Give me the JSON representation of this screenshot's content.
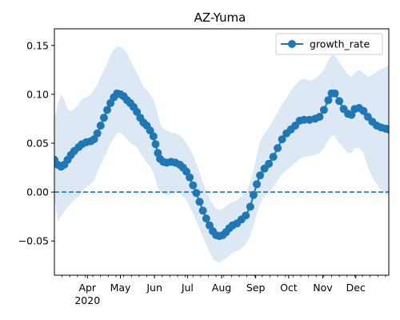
{
  "chart_data": {
    "type": "line",
    "title": "AZ-Yuma",
    "xlabel": "",
    "ylabel": "",
    "x_axis": {
      "type": "date",
      "range": [
        "2020-03-02",
        "2020-12-31"
      ],
      "major_ticks": [
        {
          "date": "2020-04-01",
          "label": "Apr",
          "sublabel": "2020"
        },
        {
          "date": "2020-05-01",
          "label": "May"
        },
        {
          "date": "2020-06-01",
          "label": "Jun"
        },
        {
          "date": "2020-07-01",
          "label": "Jul"
        },
        {
          "date": "2020-08-01",
          "label": "Aug"
        },
        {
          "date": "2020-09-01",
          "label": "Sep"
        },
        {
          "date": "2020-10-01",
          "label": "Oct"
        },
        {
          "date": "2020-11-01",
          "label": "Nov"
        },
        {
          "date": "2020-12-01",
          "label": "Dec"
        }
      ],
      "minor_ticks": "weekly"
    },
    "y_axis": {
      "range": [
        -0.085,
        0.167
      ],
      "ticks": [
        -0.05,
        0.0,
        0.05,
        0.1,
        0.15
      ],
      "tick_labels": [
        "−0.05",
        "0.00",
        "0.05",
        "0.10",
        "0.15"
      ]
    },
    "reference_line": {
      "y": 0.0,
      "style": "dashed",
      "color": "#1f77b4"
    },
    "legend": {
      "placement": "top-right"
    },
    "colors": {
      "series": "#1f77b4",
      "band": "#dce9f5"
    },
    "series": [
      {
        "name": "growth_rate",
        "marker": "circle",
        "points": [
          {
            "x": "2020-03-02",
            "y": 0.033,
            "lo": -0.005,
            "hi": 0.075
          },
          {
            "x": "2020-03-05",
            "y": 0.028,
            "lo": -0.03,
            "hi": 0.09
          },
          {
            "x": "2020-03-08",
            "y": 0.026,
            "lo": -0.025,
            "hi": 0.1
          },
          {
            "x": "2020-03-11",
            "y": 0.028,
            "lo": -0.02,
            "hi": 0.095
          },
          {
            "x": "2020-03-14",
            "y": 0.033,
            "lo": -0.015,
            "hi": 0.085
          },
          {
            "x": "2020-03-17",
            "y": 0.038,
            "lo": -0.012,
            "hi": 0.083
          },
          {
            "x": "2020-03-20",
            "y": 0.042,
            "lo": -0.008,
            "hi": 0.085
          },
          {
            "x": "2020-03-24",
            "y": 0.046,
            "lo": -0.005,
            "hi": 0.09
          },
          {
            "x": "2020-03-27",
            "y": 0.049,
            "lo": 0.0,
            "hi": 0.095
          },
          {
            "x": "2020-03-31",
            "y": 0.051,
            "lo": 0.005,
            "hi": 0.097
          },
          {
            "x": "2020-04-04",
            "y": 0.052,
            "lo": 0.008,
            "hi": 0.1
          },
          {
            "x": "2020-04-07",
            "y": 0.054,
            "lo": 0.012,
            "hi": 0.105
          },
          {
            "x": "2020-04-10",
            "y": 0.06,
            "lo": 0.02,
            "hi": 0.11
          },
          {
            "x": "2020-04-13",
            "y": 0.068,
            "lo": 0.028,
            "hi": 0.118
          },
          {
            "x": "2020-04-16",
            "y": 0.076,
            "lo": 0.035,
            "hi": 0.125
          },
          {
            "x": "2020-04-19",
            "y": 0.084,
            "lo": 0.042,
            "hi": 0.132
          },
          {
            "x": "2020-04-22",
            "y": 0.091,
            "lo": 0.05,
            "hi": 0.14
          },
          {
            "x": "2020-04-25",
            "y": 0.097,
            "lo": 0.055,
            "hi": 0.146
          },
          {
            "x": "2020-04-28",
            "y": 0.101,
            "lo": 0.06,
            "hi": 0.149
          },
          {
            "x": "2020-05-01",
            "y": 0.1,
            "lo": 0.061,
            "hi": 0.149
          },
          {
            "x": "2020-05-04",
            "y": 0.098,
            "lo": 0.058,
            "hi": 0.146
          },
          {
            "x": "2020-05-07",
            "y": 0.094,
            "lo": 0.054,
            "hi": 0.142
          },
          {
            "x": "2020-05-10",
            "y": 0.091,
            "lo": 0.05,
            "hi": 0.135
          },
          {
            "x": "2020-05-13",
            "y": 0.087,
            "lo": 0.048,
            "hi": 0.128
          },
          {
            "x": "2020-05-16",
            "y": 0.082,
            "lo": 0.046,
            "hi": 0.122
          },
          {
            "x": "2020-05-19",
            "y": 0.076,
            "lo": 0.04,
            "hi": 0.115
          },
          {
            "x": "2020-05-22",
            "y": 0.071,
            "lo": 0.035,
            "hi": 0.108
          },
          {
            "x": "2020-05-25",
            "y": 0.068,
            "lo": 0.03,
            "hi": 0.104
          },
          {
            "x": "2020-05-28",
            "y": 0.063,
            "lo": 0.026,
            "hi": 0.1
          },
          {
            "x": "2020-05-31",
            "y": 0.057,
            "lo": 0.02,
            "hi": 0.095
          },
          {
            "x": "2020-06-02",
            "y": 0.049,
            "lo": 0.012,
            "hi": 0.088
          },
          {
            "x": "2020-06-04",
            "y": 0.04,
            "lo": 0.004,
            "hi": 0.08
          },
          {
            "x": "2020-06-06",
            "y": 0.034,
            "lo": 0.0,
            "hi": 0.07
          },
          {
            "x": "2020-06-09",
            "y": 0.031,
            "lo": -0.002,
            "hi": 0.065
          },
          {
            "x": "2020-06-12",
            "y": 0.03,
            "lo": -0.003,
            "hi": 0.063
          },
          {
            "x": "2020-06-16",
            "y": 0.031,
            "lo": -0.002,
            "hi": 0.061
          },
          {
            "x": "2020-06-20",
            "y": 0.03,
            "lo": -0.001,
            "hi": 0.06
          },
          {
            "x": "2020-06-24",
            "y": 0.028,
            "lo": 0.0,
            "hi": 0.058
          },
          {
            "x": "2020-06-27",
            "y": 0.025,
            "lo": -0.005,
            "hi": 0.055
          },
          {
            "x": "2020-06-30",
            "y": 0.021,
            "lo": -0.008,
            "hi": 0.05
          },
          {
            "x": "2020-07-03",
            "y": 0.015,
            "lo": -0.015,
            "hi": 0.045
          },
          {
            "x": "2020-07-06",
            "y": 0.007,
            "lo": -0.022,
            "hi": 0.038
          },
          {
            "x": "2020-07-09",
            "y": -0.001,
            "lo": -0.03,
            "hi": 0.03
          },
          {
            "x": "2020-07-12",
            "y": -0.01,
            "lo": -0.038,
            "hi": 0.02
          },
          {
            "x": "2020-07-15",
            "y": -0.019,
            "lo": -0.046,
            "hi": 0.01
          },
          {
            "x": "2020-07-18",
            "y": -0.027,
            "lo": -0.054,
            "hi": 0.002
          },
          {
            "x": "2020-07-21",
            "y": -0.034,
            "lo": -0.062,
            "hi": -0.006
          },
          {
            "x": "2020-07-24",
            "y": -0.04,
            "lo": -0.068,
            "hi": -0.012
          },
          {
            "x": "2020-07-27",
            "y": -0.044,
            "lo": -0.071,
            "hi": -0.017
          },
          {
            "x": "2020-07-30",
            "y": -0.045,
            "lo": -0.072,
            "hi": -0.018
          },
          {
            "x": "2020-08-02",
            "y": -0.044,
            "lo": -0.07,
            "hi": -0.017
          },
          {
            "x": "2020-08-05",
            "y": -0.041,
            "lo": -0.068,
            "hi": -0.014
          },
          {
            "x": "2020-08-08",
            "y": -0.037,
            "lo": -0.065,
            "hi": -0.012
          },
          {
            "x": "2020-08-11",
            "y": -0.034,
            "lo": -0.062,
            "hi": -0.01
          },
          {
            "x": "2020-08-15",
            "y": -0.032,
            "lo": -0.06,
            "hi": -0.008
          },
          {
            "x": "2020-08-19",
            "y": -0.028,
            "lo": -0.058,
            "hi": -0.004
          },
          {
            "x": "2020-08-23",
            "y": -0.024,
            "lo": -0.053,
            "hi": 0.0
          },
          {
            "x": "2020-08-27",
            "y": -0.015,
            "lo": -0.045,
            "hi": 0.01
          },
          {
            "x": "2020-08-30",
            "y": -0.003,
            "lo": -0.035,
            "hi": 0.022
          },
          {
            "x": "2020-09-02",
            "y": 0.008,
            "lo": -0.022,
            "hi": 0.038
          },
          {
            "x": "2020-09-05",
            "y": 0.017,
            "lo": -0.012,
            "hi": 0.052
          },
          {
            "x": "2020-09-09",
            "y": 0.024,
            "lo": -0.004,
            "hi": 0.06
          },
          {
            "x": "2020-09-13",
            "y": 0.029,
            "lo": 0.0,
            "hi": 0.066
          },
          {
            "x": "2020-09-17",
            "y": 0.036,
            "lo": 0.005,
            "hi": 0.074
          },
          {
            "x": "2020-09-21",
            "y": 0.045,
            "lo": 0.012,
            "hi": 0.082
          },
          {
            "x": "2020-09-25",
            "y": 0.054,
            "lo": 0.018,
            "hi": 0.09
          },
          {
            "x": "2020-09-29",
            "y": 0.06,
            "lo": 0.022,
            "hi": 0.096
          },
          {
            "x": "2020-10-03",
            "y": 0.064,
            "lo": 0.026,
            "hi": 0.104
          },
          {
            "x": "2020-10-07",
            "y": 0.068,
            "lo": 0.03,
            "hi": 0.11
          },
          {
            "x": "2020-10-11",
            "y": 0.073,
            "lo": 0.034,
            "hi": 0.114
          },
          {
            "x": "2020-10-15",
            "y": 0.074,
            "lo": 0.036,
            "hi": 0.116
          },
          {
            "x": "2020-10-20",
            "y": 0.074,
            "lo": 0.037,
            "hi": 0.114
          },
          {
            "x": "2020-10-25",
            "y": 0.075,
            "lo": 0.038,
            "hi": 0.116
          },
          {
            "x": "2020-10-29",
            "y": 0.077,
            "lo": 0.04,
            "hi": 0.12
          },
          {
            "x": "2020-11-02",
            "y": 0.084,
            "lo": 0.045,
            "hi": 0.125
          },
          {
            "x": "2020-11-06",
            "y": 0.094,
            "lo": 0.053,
            "hi": 0.135
          },
          {
            "x": "2020-11-09",
            "y": 0.101,
            "lo": 0.058,
            "hi": 0.14
          },
          {
            "x": "2020-11-12",
            "y": 0.101,
            "lo": 0.057,
            "hi": 0.14
          },
          {
            "x": "2020-11-16",
            "y": 0.093,
            "lo": 0.05,
            "hi": 0.133
          },
          {
            "x": "2020-11-20",
            "y": 0.085,
            "lo": 0.045,
            "hi": 0.126
          },
          {
            "x": "2020-11-24",
            "y": 0.08,
            "lo": 0.04,
            "hi": 0.12
          },
          {
            "x": "2020-11-27",
            "y": 0.079,
            "lo": 0.04,
            "hi": 0.118
          },
          {
            "x": "2020-11-30",
            "y": 0.085,
            "lo": 0.045,
            "hi": 0.122
          },
          {
            "x": "2020-12-04",
            "y": 0.086,
            "lo": 0.045,
            "hi": 0.125
          },
          {
            "x": "2020-12-08",
            "y": 0.083,
            "lo": 0.04,
            "hi": 0.122
          },
          {
            "x": "2020-12-12",
            "y": 0.077,
            "lo": 0.025,
            "hi": 0.118
          },
          {
            "x": "2020-12-16",
            "y": 0.072,
            "lo": 0.015,
            "hi": 0.12
          },
          {
            "x": "2020-12-20",
            "y": 0.068,
            "lo": 0.008,
            "hi": 0.123
          },
          {
            "x": "2020-12-24",
            "y": 0.066,
            "lo": 0.002,
            "hi": 0.126
          },
          {
            "x": "2020-12-28",
            "y": 0.065,
            "lo": -0.002,
            "hi": 0.128
          },
          {
            "x": "2020-12-31",
            "y": 0.064,
            "lo": -0.004,
            "hi": 0.13
          }
        ]
      }
    ]
  }
}
